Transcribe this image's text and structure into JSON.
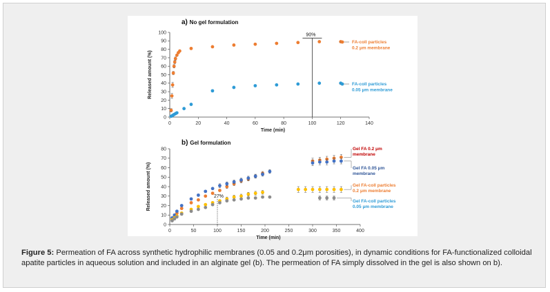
{
  "caption": {
    "label": "Figure 5:",
    "text": " Permeation of FA across synthetic hydrophilic membranes (0.05 and 0.2μm porosities), in dynamic conditions for FA-functionalized colloidal apatite particles in aqueous solution and included in an alginate gel (b). The permeation of FA simply dissolved in the gel is also shown on b)."
  },
  "chart_data": [
    {
      "type": "scatter",
      "panel_letter": "a)",
      "title": "No gel formulation",
      "xlabel": "Time (min)",
      "ylabel": "Released amount (%)",
      "xlim": [
        0,
        140
      ],
      "ylim": [
        0,
        100
      ],
      "xticks": [
        0,
        20,
        40,
        60,
        80,
        100,
        120,
        140
      ],
      "yticks": [
        0,
        10,
        20,
        30,
        40,
        50,
        60,
        70,
        80,
        90,
        100
      ],
      "grid": false,
      "legend_position": "right",
      "series": [
        {
          "name_lines": [
            "FA-coll particles",
            "0.2 μm membrane"
          ],
          "color": "#ED7D31",
          "points": [
            [
              1,
              8,
              2
            ],
            [
              1.5,
              25,
              3
            ],
            [
              2,
              38,
              3
            ],
            [
              2.5,
              52,
              2
            ],
            [
              3,
              60,
              2
            ],
            [
              3.5,
              65,
              2
            ],
            [
              4,
              69,
              2
            ],
            [
              5,
              73,
              1
            ],
            [
              6,
              76,
              1
            ],
            [
              7,
              78,
              1
            ],
            [
              15,
              81,
              1
            ],
            [
              30,
              83,
              1
            ],
            [
              45,
              85,
              1
            ],
            [
              60,
              86,
              1
            ],
            [
              75,
              87,
              1
            ],
            [
              90,
              88,
              1
            ],
            [
              105,
              89,
              1
            ],
            [
              120,
              89,
              1
            ]
          ]
        },
        {
          "name_lines": [
            "FA-coll particles",
            "0.05 μm membrane"
          ],
          "color": "#2E9BD6",
          "points": [
            [
              1,
              1,
              0
            ],
            [
              2,
              2,
              0
            ],
            [
              3,
              3,
              0
            ],
            [
              4,
              4,
              0
            ],
            [
              5,
              5,
              0
            ],
            [
              10,
              10,
              0
            ],
            [
              15,
              15,
              0
            ],
            [
              30,
              31,
              0
            ],
            [
              45,
              35,
              0
            ],
            [
              60,
              37,
              0
            ],
            [
              75,
              38,
              0
            ],
            [
              90,
              39,
              0
            ],
            [
              105,
              40,
              0
            ],
            [
              120,
              40,
              0
            ]
          ]
        }
      ],
      "annotations": [
        {
          "text": "90%",
          "x": 100,
          "y": 90
        }
      ]
    },
    {
      "type": "scatter",
      "panel_letter": "b)",
      "title": "Gel formulation",
      "xlabel": "Time (min)",
      "ylabel": "Released amount (%)",
      "xlim": [
        0,
        400
      ],
      "ylim": [
        0,
        80
      ],
      "xticks": [
        0,
        50,
        100,
        150,
        200,
        250,
        300,
        350,
        400
      ],
      "yticks": [
        0,
        10,
        20,
        30,
        40,
        50,
        60,
        70,
        80
      ],
      "grid": false,
      "legend_position": "right",
      "series": [
        {
          "name_lines": [
            "Gel FA 0.2 μm",
            "membrane"
          ],
          "color": "#ED7D31",
          "label_color": "#C00000",
          "points": [
            [
              5,
              6,
              1
            ],
            [
              10,
              9,
              1
            ],
            [
              15,
              12,
              1
            ],
            [
              25,
              17,
              1
            ],
            [
              45,
              23,
              1
            ],
            [
              60,
              26,
              1
            ],
            [
              75,
              30,
              1
            ],
            [
              90,
              33,
              1
            ],
            [
              105,
              36,
              1
            ],
            [
              120,
              40,
              2
            ],
            [
              135,
              43,
              2
            ],
            [
              150,
              46,
              2
            ],
            [
              165,
              48,
              2
            ],
            [
              180,
              51,
              2
            ],
            [
              195,
              54,
              2
            ],
            [
              300,
              67,
              3
            ],
            [
              315,
              68,
              3
            ],
            [
              330,
              69,
              3
            ],
            [
              345,
              70,
              3
            ],
            [
              360,
              71,
              3
            ]
          ]
        },
        {
          "name_lines": [
            "Gel FA 0.05 μm",
            "membrane"
          ],
          "color": "#4472C4",
          "label_color": "#2F5597",
          "points": [
            [
              5,
              7,
              1
            ],
            [
              10,
              10,
              1
            ],
            [
              15,
              14,
              1
            ],
            [
              25,
              20,
              1
            ],
            [
              45,
              27,
              1
            ],
            [
              60,
              31,
              1
            ],
            [
              75,
              35,
              1
            ],
            [
              90,
              38,
              1
            ],
            [
              105,
              41,
              2
            ],
            [
              120,
              43,
              2
            ],
            [
              135,
              45,
              2
            ],
            [
              150,
              47,
              2
            ],
            [
              165,
              49,
              2
            ],
            [
              180,
              51,
              2
            ],
            [
              195,
              53,
              2
            ],
            [
              210,
              56,
              2
            ],
            [
              300,
              65,
              3
            ],
            [
              315,
              66,
              3
            ],
            [
              330,
              66,
              3
            ],
            [
              345,
              67,
              3
            ],
            [
              360,
              67,
              3
            ]
          ]
        },
        {
          "name_lines": [
            "Gel FA-coll particles",
            "0.2 μm membrane"
          ],
          "color": "#FFC000",
          "label_color": "#ED7D31",
          "points": [
            [
              5,
              5,
              1
            ],
            [
              10,
              7,
              1
            ],
            [
              15,
              9,
              1
            ],
            [
              25,
              12,
              1
            ],
            [
              45,
              16,
              1
            ],
            [
              60,
              19,
              1
            ],
            [
              75,
              21,
              1
            ],
            [
              90,
              23,
              1
            ],
            [
              105,
              25,
              1
            ],
            [
              120,
              27,
              2
            ],
            [
              135,
              29,
              2
            ],
            [
              150,
              30,
              2
            ],
            [
              165,
              32,
              2
            ],
            [
              180,
              33,
              2
            ],
            [
              195,
              34,
              2
            ],
            [
              270,
              37,
              3
            ],
            [
              285,
              37,
              3
            ],
            [
              300,
              37,
              3
            ],
            [
              315,
              37,
              3
            ],
            [
              330,
              37,
              3
            ],
            [
              345,
              37,
              3
            ],
            [
              360,
              37,
              3
            ]
          ]
        },
        {
          "name_lines": [
            "Gel FA-coll particles",
            "0.05 μm membrane"
          ],
          "color": "#8C8C8C",
          "label_color": "#2E9BD6",
          "points": [
            [
              5,
              4,
              1
            ],
            [
              10,
              6,
              1
            ],
            [
              15,
              8,
              1
            ],
            [
              25,
              11,
              1
            ],
            [
              45,
              14,
              1
            ],
            [
              60,
              16,
              1
            ],
            [
              75,
              18,
              1
            ],
            [
              90,
              21,
              1
            ],
            [
              105,
              23,
              1
            ],
            [
              120,
              25,
              1
            ],
            [
              135,
              26,
              1
            ],
            [
              150,
              27,
              1
            ],
            [
              165,
              28,
              1
            ],
            [
              180,
              28,
              1
            ],
            [
              195,
              29,
              1
            ],
            [
              210,
              29,
              1
            ],
            [
              315,
              28,
              2
            ],
            [
              330,
              28,
              2
            ],
            [
              345,
              28,
              2
            ]
          ]
        }
      ],
      "annotations": [
        {
          "text": "27%",
          "x": 100,
          "y": 27
        }
      ]
    }
  ]
}
